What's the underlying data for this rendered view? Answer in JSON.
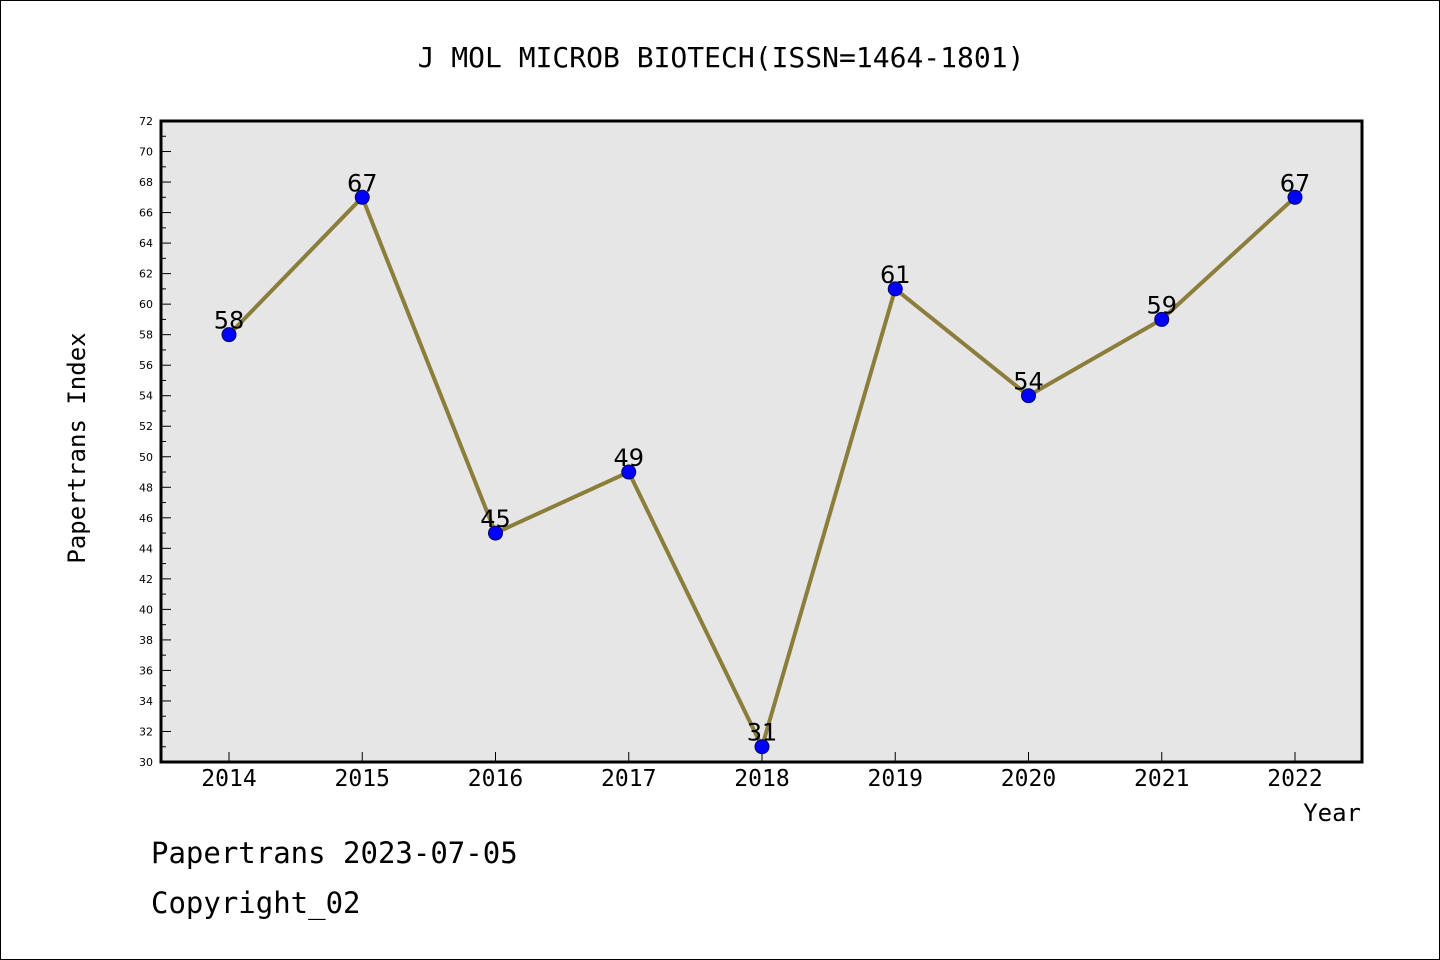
{
  "footer": {
    "line1": "Papertrans 2023-07-05",
    "line2": "Copyright_02"
  },
  "colors": {
    "line": "#8b7d3a",
    "marker": "#0000ff",
    "plot_background": "#e6e6e6",
    "frame": "#000000"
  },
  "chart_data": {
    "type": "line",
    "title": "J MOL MICROB BIOTECH(ISSN=1464-1801)",
    "xlabel": "Year",
    "ylabel": "Papertrans Index",
    "categories": [
      "2014",
      "2015",
      "2016",
      "2017",
      "2018",
      "2019",
      "2020",
      "2021",
      "2022"
    ],
    "series": [
      {
        "values": [
          58,
          67,
          45,
          49,
          31,
          61,
          54,
          59,
          67
        ]
      }
    ],
    "ylim": [
      30,
      72
    ],
    "y_ticks": [
      30,
      32,
      34,
      36,
      38,
      40,
      42,
      44,
      46,
      48,
      50,
      52,
      54,
      56,
      58,
      60,
      62,
      64,
      66,
      68,
      70,
      72
    ],
    "data_labels": true,
    "grid": false,
    "legend": "none"
  }
}
